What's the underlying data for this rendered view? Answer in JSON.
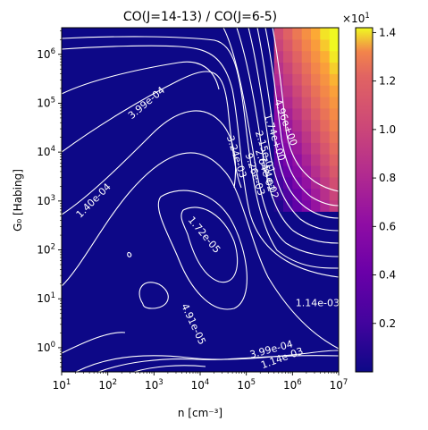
{
  "chart_data": {
    "type": "heatmap",
    "title": "CO(J=14-13) / CO(J=6-5)",
    "xlabel": "n [cm⁻³]",
    "ylabel": "G₀ [Habing]",
    "xscale": "log",
    "yscale": "log",
    "xlim": [
      10,
      10000000
    ],
    "ylim": [
      0.32,
      3500000
    ],
    "x_ticks": [
      {
        "value": 10,
        "mant": "10",
        "exp": "1"
      },
      {
        "value": 100,
        "mant": "10",
        "exp": "2"
      },
      {
        "value": 1000,
        "mant": "10",
        "exp": "3"
      },
      {
        "value": 10000,
        "mant": "10",
        "exp": "4"
      },
      {
        "value": 100000,
        "mant": "10",
        "exp": "5"
      },
      {
        "value": 1000000,
        "mant": "10",
        "exp": "6"
      },
      {
        "value": 10000000,
        "mant": "10",
        "exp": "7"
      }
    ],
    "y_ticks": [
      {
        "value": 1,
        "mant": "10",
        "exp": "0"
      },
      {
        "value": 10,
        "mant": "10",
        "exp": "1"
      },
      {
        "value": 100,
        "mant": "10",
        "exp": "2"
      },
      {
        "value": 1000,
        "mant": "10",
        "exp": "3"
      },
      {
        "value": 10000,
        "mant": "10",
        "exp": "4"
      },
      {
        "value": 100000,
        "mant": "10",
        "exp": "5"
      },
      {
        "value": 1000000,
        "mant": "10",
        "exp": "6"
      }
    ],
    "colorbar": {
      "colormap": "plasma",
      "range": [
        0.0,
        1.42
      ],
      "ticks": [
        "0.2",
        "0.4",
        "0.6",
        "0.8",
        "1.0",
        "1.2",
        "1.4"
      ],
      "multiplier_mant": "×10",
      "multiplier_exp": "1"
    },
    "contour_color": "#ffffff",
    "contour_labels": [
      {
        "text": "1.40e-04",
        "x": 50,
        "y": 1000,
        "angle": -45
      },
      {
        "text": "3.99e-04",
        "x": 700,
        "y": 100000,
        "angle": -40
      },
      {
        "text": "3.24e-03",
        "x": 60000,
        "y": 8000,
        "angle": 72
      },
      {
        "text": "9.26e-03",
        "x": 150000,
        "y": 3500,
        "angle": 72
      },
      {
        "text": "2.64e-02",
        "x": 250000,
        "y": 4200,
        "angle": 72
      },
      {
        "text": "7.54e-02",
        "x": 300000,
        "y": 3000,
        "angle": 72
      },
      {
        "text": "2.15e-01",
        "x": 250000,
        "y": 10000,
        "angle": 72
      },
      {
        "text": "1.74e+00",
        "x": 400000,
        "y": 20000,
        "angle": 72
      },
      {
        "text": "4.96e+00",
        "x": 700000,
        "y": 40000,
        "angle": 70
      },
      {
        "text": "1.72e-05",
        "x": 12000,
        "y": 200,
        "angle": 50
      },
      {
        "text": "4.91e-05",
        "x": 7000,
        "y": 3,
        "angle": 65
      },
      {
        "text": "1.14e-03",
        "x": 3500000,
        "y": 8,
        "angle": 0
      },
      {
        "text": "3.99e-04",
        "x": 350000,
        "y": 0.9,
        "angle": -15
      },
      {
        "text": "1.14e-03",
        "x": 600000,
        "y": 0.6,
        "angle": -20
      }
    ]
  }
}
